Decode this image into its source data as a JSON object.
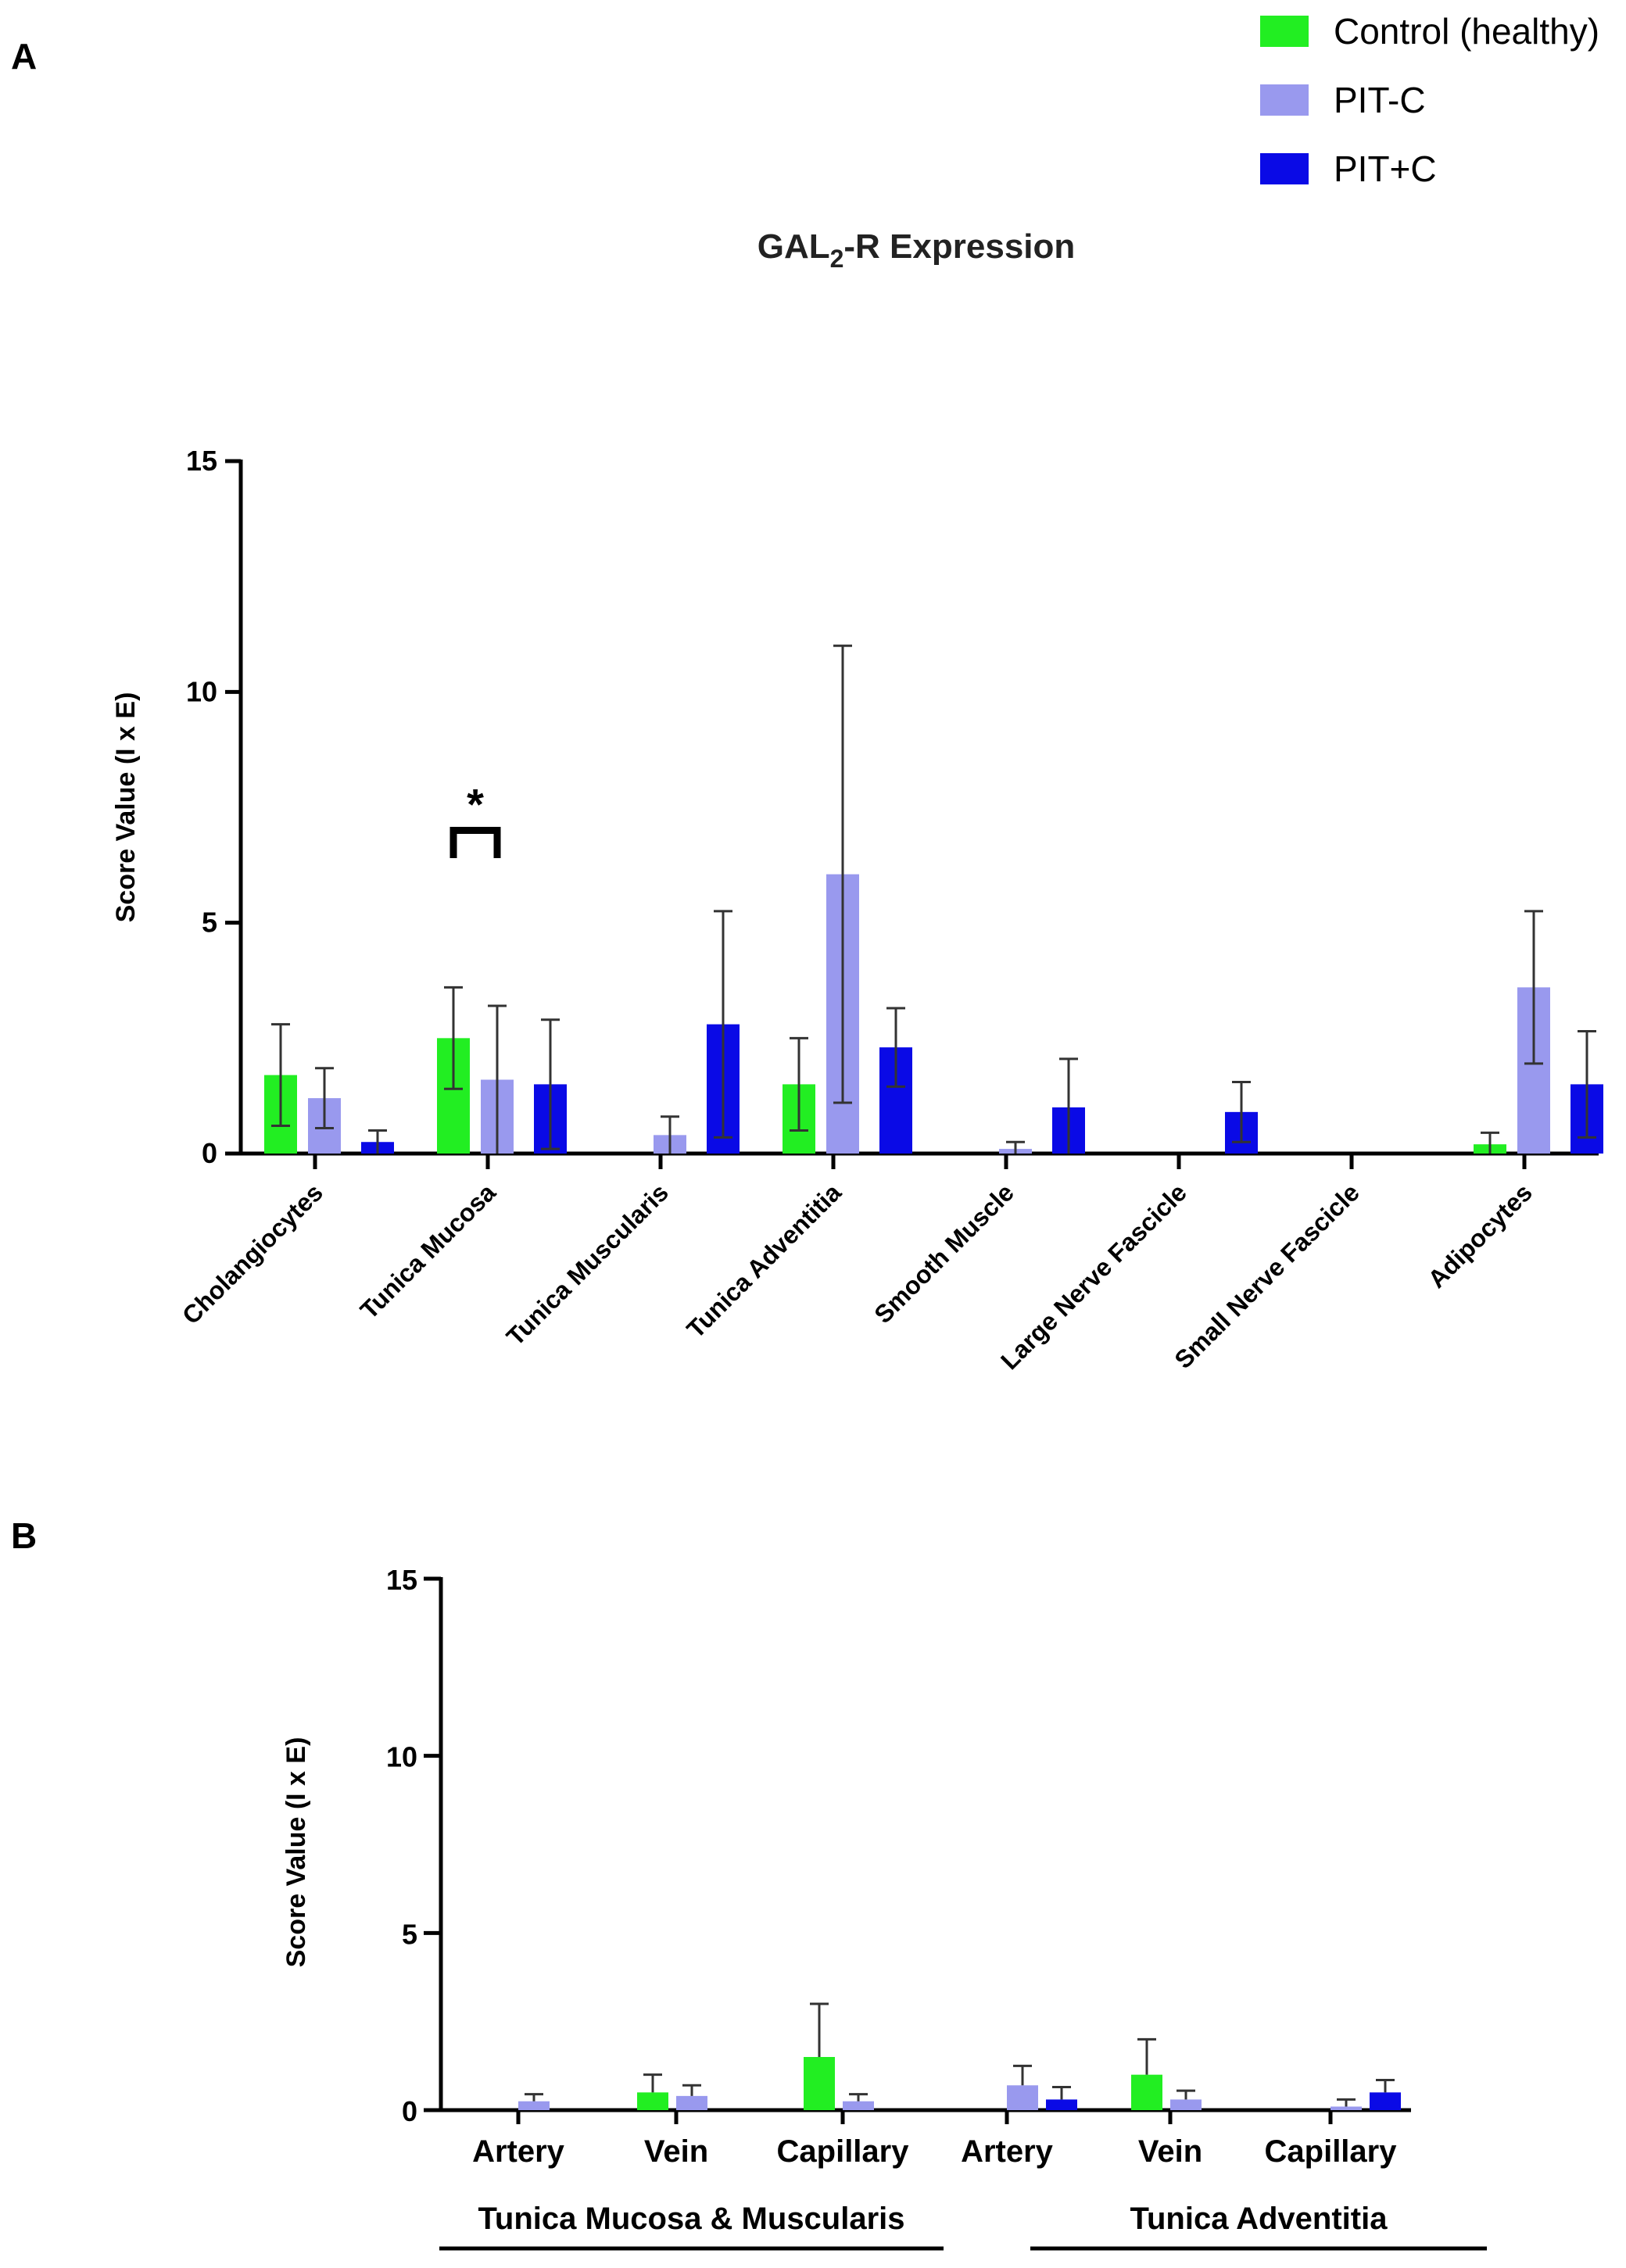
{
  "colors": {
    "control": "#22ee22",
    "pit_minus_c": "#9999ee",
    "pit_plus_c": "#0a0ae6"
  },
  "legend": [
    {
      "label": "Control (healthy)",
      "color_key": "control"
    },
    {
      "label": "PIT-C",
      "color_key": "pit_minus_c"
    },
    {
      "label": "PIT+C",
      "color_key": "pit_plus_c"
    }
  ],
  "chart_data": [
    {
      "panel": "A",
      "type": "bar",
      "title_main": "GAL",
      "title_sub": "2",
      "title_rest": "-R Expression",
      "ylabel": "Score Value (I x E)",
      "ylim": [
        0,
        15
      ],
      "yticks": [
        "0",
        "5",
        "10",
        "15"
      ],
      "categories": [
        "Cholangiocytes",
        "Tunica Mucosa",
        "Tunica Muscularis",
        "Tunica Adventitia",
        "Smooth Muscle",
        "Large Nerve Fascicle",
        "Small Nerve Fascicle",
        "Adipocytes"
      ],
      "series": [
        {
          "name": "Control (healthy)",
          "values": [
            1.7,
            2.5,
            0,
            1.5,
            0,
            0,
            0,
            0.2
          ],
          "errors": [
            1.1,
            1.1,
            0,
            1.0,
            0,
            0,
            0,
            0.25
          ]
        },
        {
          "name": "PIT-C",
          "values": [
            1.2,
            1.6,
            0.4,
            6.05,
            0.1,
            0,
            0,
            3.6
          ],
          "errors": [
            0.65,
            1.6,
            0.4,
            4.95,
            0.15,
            0,
            0,
            1.65
          ]
        },
        {
          "name": "PIT+C",
          "values": [
            0.25,
            1.5,
            2.8,
            2.3,
            1.0,
            0.9,
            0,
            1.5
          ],
          "errors": [
            0.25,
            1.4,
            2.45,
            0.85,
            1.05,
            0.65,
            0,
            1.15
          ]
        }
      ],
      "annotations": [
        {
          "text": "*",
          "category": "Tunica Mucosa",
          "between": [
            "Control (healthy)",
            "PIT-C"
          ]
        }
      ]
    },
    {
      "panel": "B",
      "type": "bar",
      "ylabel": "Score Value  (I x E)",
      "ylim": [
        0,
        15
      ],
      "yticks": [
        "0",
        "5",
        "10",
        "15"
      ],
      "categories": [
        "Artery",
        "Vein",
        "Capillary",
        "Artery",
        "Vein",
        "Capillary"
      ],
      "groups": [
        {
          "label": "Tunica Mucosa & Muscularis",
          "categories": [
            0,
            1,
            2
          ]
        },
        {
          "label": "Tunica Adventitia",
          "categories": [
            3,
            4,
            5
          ]
        }
      ],
      "series": [
        {
          "name": "Control (healthy)",
          "values": [
            0,
            0.5,
            1.5,
            0,
            1.0,
            0
          ],
          "errors": [
            0,
            0.5,
            1.5,
            0,
            1.0,
            0
          ]
        },
        {
          "name": "PIT-C",
          "values": [
            0.25,
            0.4,
            0.25,
            0.7,
            0.3,
            0.1
          ],
          "errors": [
            0.2,
            0.3,
            0.2,
            0.55,
            0.25,
            0.2
          ]
        },
        {
          "name": "PIT+C",
          "values": [
            0,
            0,
            0,
            0.3,
            0,
            0.5
          ],
          "errors": [
            0,
            0,
            0,
            0.35,
            0,
            0.35
          ]
        }
      ]
    }
  ]
}
